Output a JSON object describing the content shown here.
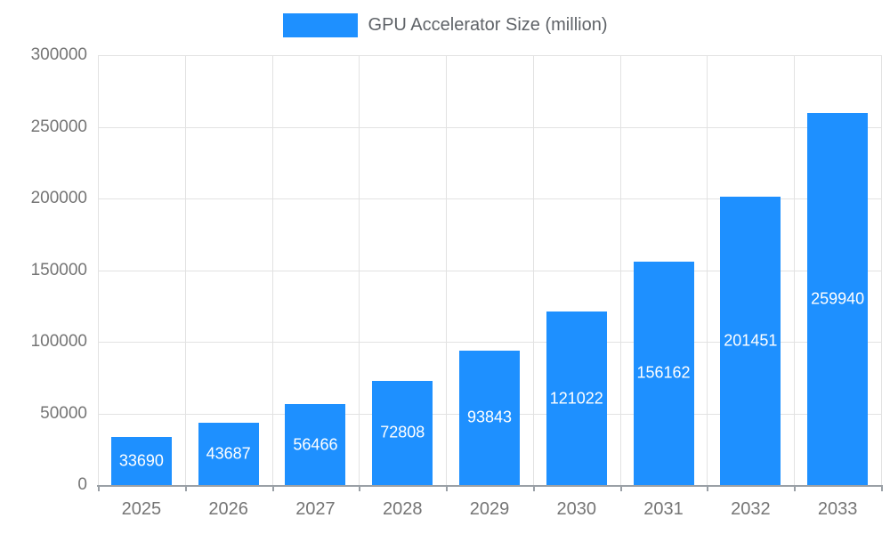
{
  "legend": {
    "label": "GPU Accelerator Size (million)"
  },
  "chart_data": {
    "type": "bar",
    "title": "GPU Accelerator Size (million)",
    "categories": [
      "2025",
      "2026",
      "2027",
      "2028",
      "2029",
      "2030",
      "2031",
      "2032",
      "2033"
    ],
    "values": [
      33690,
      43687,
      56466,
      72808,
      93843,
      121022,
      156162,
      201451,
      259940
    ],
    "xlabel": "",
    "ylabel": "",
    "ylim": [
      0,
      300000
    ],
    "y_ticks": [
      "0",
      "50000",
      "100000",
      "150000",
      "200000",
      "250000",
      "300000"
    ],
    "grid": true,
    "legend_position": "top",
    "bar_color": "#1E90FF",
    "bar_value_label_color": "#ffffff",
    "axis_label_color": "#757575",
    "gridline_color": "#e2e2e2",
    "axis_line_color": "#9aa0a6"
  }
}
